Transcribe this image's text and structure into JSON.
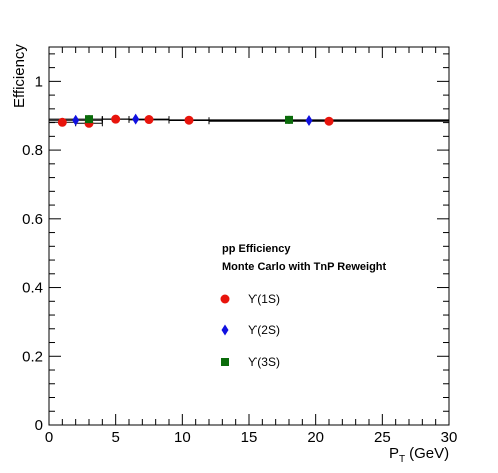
{
  "chart_data": {
    "type": "scatter",
    "title": "",
    "xlabel": "P",
    "xlabel_sub": "T",
    "xlabel_unit": "(GeV)",
    "ylabel": "Efficiency",
    "xlim": [
      0,
      30
    ],
    "ylim": [
      0,
      1.1
    ],
    "x_ticks": [
      0,
      5,
      10,
      15,
      20,
      25,
      30
    ],
    "y_ticks": [
      0,
      0.2,
      0.4,
      0.6,
      0.8,
      1
    ],
    "x_tick_labels": [
      "0",
      "5",
      "10",
      "15",
      "20",
      "25",
      "30"
    ],
    "y_tick_labels": [
      "0",
      "0.2",
      "0.4",
      "0.6",
      "0.8",
      "1"
    ],
    "grid": false,
    "legend_position": "center-right",
    "annotations": [
      "pp Efficiency",
      "Monte Carlo with TnP Reweight"
    ],
    "series": [
      {
        "name": "ϒ(1S)",
        "marker": "circle",
        "color": "#e8140c",
        "x": [
          1,
          3,
          5,
          7.5,
          10.5,
          21
        ],
        "y": [
          0.881,
          0.878,
          0.89,
          0.889,
          0.887,
          0.884
        ],
        "xerr": [
          1,
          1,
          1,
          1.5,
          1.5,
          9
        ]
      },
      {
        "name": "ϒ(2S)",
        "marker": "diamond",
        "color": "#1010e0",
        "x": [
          2,
          6.5,
          19.5
        ],
        "y": [
          0.887,
          0.89,
          0.886
        ],
        "xerr": [
          2,
          2.5,
          10.5
        ]
      },
      {
        "name": "ϒ(3S)",
        "marker": "square",
        "color": "#0a6b0a",
        "x": [
          3,
          18
        ],
        "y": [
          0.89,
          0.888
        ],
        "xerr": [
          3,
          12
        ]
      }
    ]
  }
}
